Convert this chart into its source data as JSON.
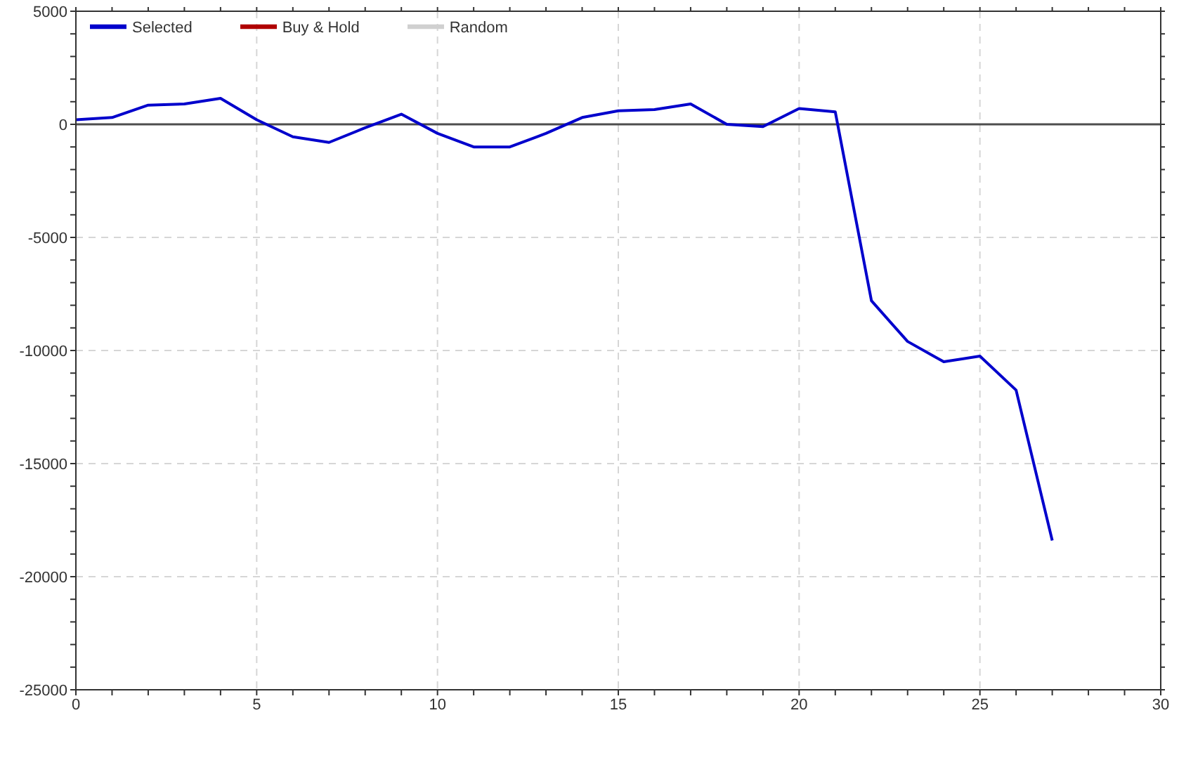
{
  "chart_data": {
    "type": "line",
    "x": [
      0,
      1,
      2,
      3,
      4,
      5,
      6,
      7,
      8,
      9,
      10,
      11,
      12,
      13,
      14,
      15,
      16,
      17,
      18,
      19,
      20,
      21,
      22,
      23,
      24,
      25,
      26,
      27
    ],
    "series": [
      {
        "name": "Selected",
        "color": "#0000cc",
        "values": [
          200,
          300,
          850,
          900,
          1150,
          200,
          -550,
          -800,
          -150,
          450,
          -400,
          -1000,
          -1000,
          -400,
          300,
          600,
          650,
          900,
          0,
          -100,
          700,
          550,
          -7800,
          -9600,
          -10500,
          -10250,
          -11750,
          -18400
        ]
      },
      {
        "name": "Buy & Hold",
        "color": "#b00000",
        "values": [
          null,
          null,
          null,
          null,
          null,
          null,
          null,
          null,
          null,
          null,
          null,
          null,
          null,
          null,
          null,
          null,
          null,
          null,
          null,
          null,
          null,
          null,
          null,
          null,
          null,
          null,
          null,
          null
        ]
      },
      {
        "name": "Random",
        "color": "#d0d0d0",
        "values": [
          null,
          null,
          null,
          null,
          null,
          null,
          null,
          null,
          null,
          null,
          null,
          null,
          null,
          null,
          null,
          null,
          null,
          null,
          null,
          null,
          null,
          null,
          null,
          null,
          null,
          null,
          null,
          null
        ]
      }
    ],
    "xlim": [
      0,
      30
    ],
    "xticks": [
      0,
      {
        "value": 1,
        "label": null
      },
      {
        "value": 2,
        "label": null
      },
      {
        "value": 3,
        "label": null
      },
      {
        "value": 4,
        "label": null
      },
      5,
      {
        "value": 6,
        "label": null
      },
      {
        "value": 7,
        "label": null
      },
      {
        "value": 8,
        "label": null
      },
      {
        "value": 9,
        "label": null
      },
      10,
      {
        "value": 11,
        "label": null
      },
      {
        "value": 12,
        "label": null
      },
      {
        "value": 13,
        "label": null
      },
      {
        "value": 14,
        "label": null
      },
      15,
      {
        "value": 16,
        "label": null
      },
      {
        "value": 17,
        "label": null
      },
      {
        "value": 18,
        "label": null
      },
      {
        "value": 19,
        "label": null
      },
      20,
      {
        "value": 21,
        "label": null
      },
      {
        "value": 22,
        "label": null
      },
      {
        "value": 23,
        "label": null
      },
      {
        "value": 24,
        "label": null
      },
      25,
      {
        "value": 26,
        "label": null
      },
      {
        "value": 27,
        "label": null
      },
      {
        "value": 28,
        "label": null
      },
      {
        "value": 29,
        "label": null
      },
      30
    ],
    "ylim": [
      -25000,
      5000
    ],
    "yticks": [
      -25000,
      {
        "value": -24000,
        "label": null
      },
      {
        "value": -23000,
        "label": null
      },
      {
        "value": -22000,
        "label": null
      },
      {
        "value": -21000,
        "label": null
      },
      -20000,
      {
        "value": -19000,
        "label": null
      },
      {
        "value": -18000,
        "label": null
      },
      {
        "value": -17000,
        "label": null
      },
      {
        "value": -16000,
        "label": null
      },
      -15000,
      {
        "value": -14000,
        "label": null
      },
      {
        "value": -13000,
        "label": null
      },
      {
        "value": -12000,
        "label": null
      },
      {
        "value": -11000,
        "label": null
      },
      -10000,
      {
        "value": -9000,
        "label": null
      },
      {
        "value": -8000,
        "label": null
      },
      {
        "value": -7000,
        "label": null
      },
      {
        "value": -6000,
        "label": null
      },
      -5000,
      {
        "value": -4000,
        "label": null
      },
      {
        "value": -3000,
        "label": null
      },
      {
        "value": -2000,
        "label": null
      },
      {
        "value": -1000,
        "label": null
      },
      0,
      {
        "value": 1000,
        "label": null
      },
      {
        "value": 2000,
        "label": null
      },
      {
        "value": 3000,
        "label": null
      },
      {
        "value": 4000,
        "label": null
      },
      5000
    ],
    "ref_lines": [
      {
        "axis": "y",
        "value": 0,
        "color": "#4d4d4d"
      }
    ],
    "grid": true,
    "legend": "top left",
    "marker": "none",
    "line_style": "solid"
  }
}
